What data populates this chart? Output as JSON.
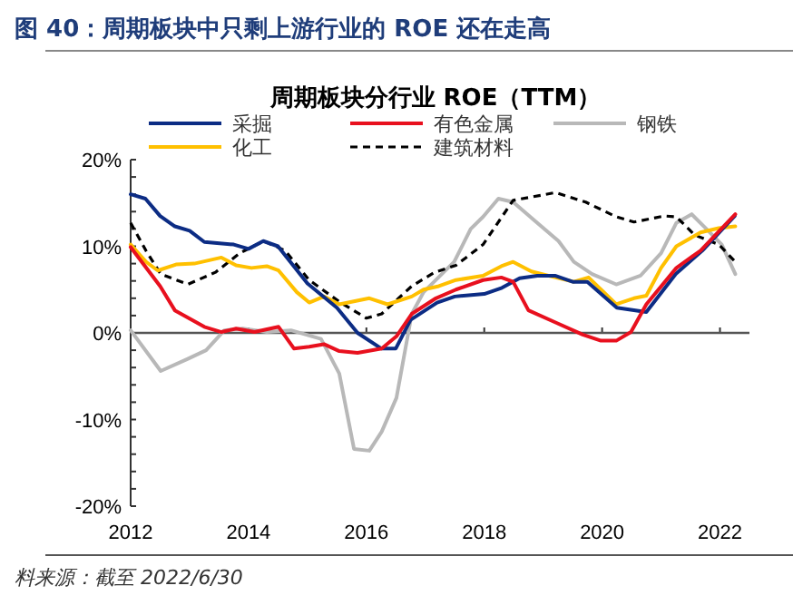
{
  "chart_data": {
    "type": "line",
    "title": "周期板块分行业 ROE（TTM）",
    "subtitle": "图 40：周期板块中只剩上游行业的 ROE 还在走高",
    "annotations": [
      "料来源：截至 2022/6/30"
    ],
    "legend": "top",
    "marker": "none",
    "xlim": [
      2012,
      2022.5
    ],
    "xticks": [
      2012,
      2014,
      2016,
      2018,
      2020,
      2022
    ],
    "ylim": [
      -20,
      20
    ],
    "yticks": [
      {
        "value": -20,
        "label": "-20%"
      },
      {
        "value": -18,
        "label": null
      },
      {
        "value": -16,
        "label": null
      },
      {
        "value": -14,
        "label": null
      },
      {
        "value": -12,
        "label": null
      },
      {
        "value": -10,
        "label": "-10%"
      },
      {
        "value": -8,
        "label": null
      },
      {
        "value": -6,
        "label": null
      },
      {
        "value": -4,
        "label": null
      },
      {
        "value": -2,
        "label": null
      },
      {
        "value": 0,
        "label": "0%"
      },
      {
        "value": 2,
        "label": null
      },
      {
        "value": 4,
        "label": null
      },
      {
        "value": 6,
        "label": null
      },
      {
        "value": 8,
        "label": null
      },
      {
        "value": 10,
        "label": "10%"
      },
      {
        "value": 12,
        "label": null
      },
      {
        "value": 14,
        "label": null
      },
      {
        "value": 16,
        "label": null
      },
      {
        "value": 18,
        "label": null
      },
      {
        "value": 20,
        "label": "20%"
      }
    ],
    "series": [
      {
        "name": "采掘",
        "color": "#0c2c84",
        "line_style": "solid",
        "x": [
          2012,
          2012.25,
          2012.5,
          2012.75,
          2013,
          2013.25,
          2013.75,
          2014,
          2014.25,
          2014.5,
          2015,
          2015.5,
          2015.85,
          2016.25,
          2016.5,
          2016.75,
          2017.2,
          2017.5,
          2018,
          2018.3,
          2018.6,
          2018.9,
          2019.2,
          2019.5,
          2019.75,
          2020.25,
          2020.75,
          2021.25,
          2021.7,
          2022.25
        ],
        "values": [
          16.0,
          15.5,
          13.5,
          12.3,
          11.8,
          10.5,
          10.2,
          9.7,
          10.6,
          10.0,
          5.7,
          2.9,
          0,
          -1.8,
          -1.8,
          1.5,
          3.5,
          4.2,
          4.5,
          5.2,
          6.3,
          6.6,
          6.6,
          5.9,
          5.9,
          2.9,
          2.4,
          6.8,
          9.5,
          13.5
        ]
      },
      {
        "name": "有色金属",
        "color": "#e8101e",
        "line_style": "solid",
        "x": [
          2012,
          2012.5,
          2012.75,
          2013.25,
          2013.54,
          2013.79,
          2014.1,
          2014.51,
          2014.77,
          2015.03,
          2015.28,
          2015.54,
          2015.85,
          2016.26,
          2016.51,
          2016.77,
          2017.18,
          2017.52,
          2017.98,
          2018.29,
          2018.49,
          2018.75,
          2019.21,
          2019.67,
          2019.98,
          2020.24,
          2020.49,
          2020.75,
          2021.26,
          2021.67,
          2022.26
        ],
        "values": [
          9.9,
          5.4,
          2.6,
          0.7,
          0.1,
          0.5,
          0.1,
          0.7,
          -1.8,
          -1.6,
          -1.3,
          -2.1,
          -2.3,
          -1.8,
          -0.4,
          2.2,
          4.0,
          5.0,
          6.1,
          6.4,
          5.9,
          2.6,
          1.2,
          -0.2,
          -0.9,
          -0.9,
          0.1,
          3.3,
          7.5,
          9.5,
          13.7
        ]
      },
      {
        "name": "钢铁",
        "color": "#b8b8b8",
        "line_style": "solid",
        "x": [
          2012,
          2012.51,
          2012.97,
          2013.28,
          2013.59,
          2013.9,
          2014.31,
          2014.72,
          2015.23,
          2015.54,
          2015.79,
          2016.05,
          2016.26,
          2016.51,
          2016.77,
          2016.97,
          2017.49,
          2017.77,
          2017.98,
          2018.24,
          2018.49,
          2018.9,
          2019.26,
          2019.52,
          2019.83,
          2020.24,
          2020.65,
          2021.0,
          2021.26,
          2021.52,
          2021.77,
          2022.03,
          2022.26
        ],
        "values": [
          0.3,
          -4.4,
          -3.0,
          -2.0,
          0.3,
          0.5,
          0.1,
          0.3,
          -0.7,
          -4.7,
          -13.4,
          -13.6,
          -11.4,
          -7.5,
          2.2,
          4.7,
          8.2,
          12.0,
          13.4,
          15.5,
          15.1,
          12.7,
          10.6,
          8.2,
          6.8,
          5.6,
          6.6,
          9.2,
          12.7,
          13.7,
          12.0,
          10.2,
          6.8
        ]
      },
      {
        "name": "化工",
        "color": "#ffc000",
        "line_style": "solid",
        "x": [
          2012,
          2012.26,
          2012.46,
          2012.77,
          2013.08,
          2013.54,
          2013.79,
          2014.05,
          2014.31,
          2014.51,
          2014.82,
          2015.03,
          2015.28,
          2015.54,
          2016.05,
          2016.36,
          2016.77,
          2016.97,
          2017.23,
          2017.52,
          2017.98,
          2018.29,
          2018.49,
          2018.8,
          2019.21,
          2019.52,
          2019.77,
          2020.24,
          2020.54,
          2020.75,
          2021.0,
          2021.26,
          2021.67,
          2021.98,
          2022.26
        ],
        "values": [
          10.2,
          8.2,
          7.2,
          7.9,
          8.0,
          8.7,
          7.8,
          7.5,
          7.7,
          7.2,
          4.7,
          3.5,
          4.2,
          3.3,
          4.0,
          3.3,
          4.2,
          5.0,
          5.4,
          6.1,
          6.6,
          7.7,
          8.2,
          7.1,
          6.4,
          5.9,
          6.4,
          3.3,
          4.0,
          4.3,
          7.5,
          10.0,
          11.6,
          12.1,
          12.3
        ]
      },
      {
        "name": "建筑材料",
        "color": "#000000",
        "line_style": "dashed",
        "x": [
          2012,
          2012.26,
          2012.51,
          2012.97,
          2013.44,
          2013.85,
          2014.26,
          2014.62,
          2015.03,
          2015.54,
          2016.0,
          2016.26,
          2016.77,
          2017.16,
          2017.52,
          2017.98,
          2018.49,
          2019.21,
          2019.72,
          2020.24,
          2020.54,
          2021.06,
          2021.26,
          2021.57,
          2021.98,
          2022.26
        ],
        "values": [
          12.7,
          9.5,
          6.8,
          5.6,
          7.0,
          9.2,
          10.6,
          9.5,
          6.1,
          3.6,
          1.7,
          2.2,
          5.4,
          7.0,
          7.8,
          10.2,
          15.3,
          16.2,
          15.1,
          13.4,
          12.8,
          13.5,
          13.4,
          11.3,
          10.2,
          8.2
        ]
      }
    ]
  }
}
